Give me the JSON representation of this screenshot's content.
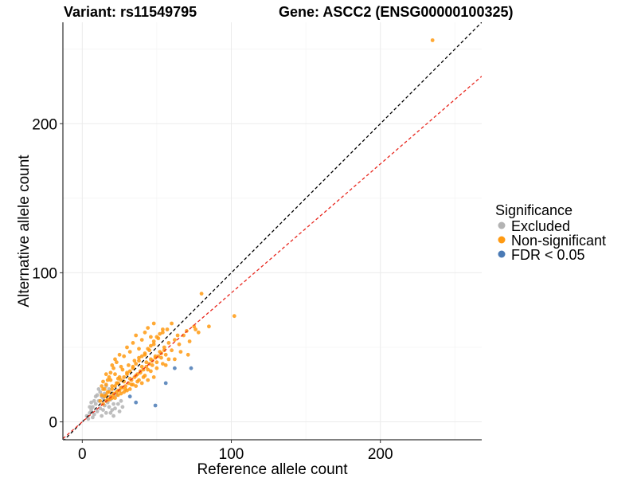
{
  "chart_data": {
    "type": "scatter",
    "title_left": "Variant: rs11549795",
    "title_right": "Gene: ASCC2 (ENSG00000100325)",
    "xlabel": "Reference allele count",
    "ylabel": "Alternative allele count",
    "xlim": [
      -13,
      268
    ],
    "ylim": [
      -12,
      268
    ],
    "x_ticks": [
      0,
      100,
      200
    ],
    "y_ticks": [
      0,
      100,
      200
    ],
    "x_tick_labels": [
      "0",
      "100",
      "200"
    ],
    "y_tick_labels": [
      "0",
      "100",
      "200"
    ],
    "grid": true,
    "legend": {
      "title": "Significance",
      "position": "right",
      "entries": [
        {
          "label": "Excluded",
          "color": "#b3b3b3"
        },
        {
          "label": "Non-significant",
          "color": "#ff9a12"
        },
        {
          "label": "FDR < 0.05",
          "color": "#4a7ab5"
        }
      ]
    },
    "reference_lines": [
      {
        "name": "identity",
        "slope": 1.0,
        "intercept": 0,
        "color": "#000000",
        "style": "dashed"
      },
      {
        "name": "fit",
        "slope": 0.865,
        "intercept": 0,
        "color": "#e8281f",
        "style": "dashed"
      }
    ],
    "series": [
      {
        "name": "Excluded",
        "color": "#b3b3b3",
        "points": [
          [
            3,
            4
          ],
          [
            5,
            6
          ],
          [
            6,
            8
          ],
          [
            7,
            10
          ],
          [
            8,
            5
          ],
          [
            9,
            12
          ],
          [
            10,
            7
          ],
          [
            11,
            14
          ],
          [
            12,
            9
          ],
          [
            13,
            4
          ],
          [
            14,
            16
          ],
          [
            15,
            11
          ],
          [
            16,
            6
          ],
          [
            17,
            13
          ],
          [
            18,
            10
          ],
          [
            19,
            15
          ],
          [
            20,
            8
          ],
          [
            21,
            12
          ],
          [
            22,
            9
          ],
          [
            8,
            14
          ],
          [
            10,
            18
          ],
          [
            12,
            20
          ],
          [
            6,
            13
          ],
          [
            4,
            2
          ],
          [
            7,
            3
          ],
          [
            15,
            19
          ],
          [
            18,
            22
          ],
          [
            13,
            17
          ],
          [
            24,
            12
          ],
          [
            25,
            7
          ],
          [
            26,
            14
          ],
          [
            23,
            18
          ],
          [
            16,
            24
          ],
          [
            11,
            22
          ],
          [
            9,
            17
          ],
          [
            5,
            10
          ],
          [
            14,
            8
          ],
          [
            19,
            6
          ],
          [
            21,
            4
          ],
          [
            27,
            10
          ]
        ]
      },
      {
        "name": "Non-significant",
        "color": "#ff9a12",
        "points": [
          [
            12,
            14
          ],
          [
            13,
            18
          ],
          [
            14,
            22
          ],
          [
            15,
            17
          ],
          [
            16,
            25
          ],
          [
            17,
            20
          ],
          [
            18,
            15
          ],
          [
            19,
            28
          ],
          [
            20,
            24
          ],
          [
            21,
            19
          ],
          [
            22,
            32
          ],
          [
            23,
            26
          ],
          [
            24,
            21
          ],
          [
            25,
            30
          ],
          [
            26,
            23
          ],
          [
            27,
            35
          ],
          [
            28,
            27
          ],
          [
            29,
            22
          ],
          [
            30,
            33
          ],
          [
            31,
            38
          ],
          [
            32,
            29
          ],
          [
            33,
            25
          ],
          [
            34,
            36
          ],
          [
            35,
            41
          ],
          [
            36,
            31
          ],
          [
            37,
            27
          ],
          [
            38,
            43
          ],
          [
            39,
            34
          ],
          [
            40,
            37
          ],
          [
            41,
            30
          ],
          [
            42,
            45
          ],
          [
            43,
            40
          ],
          [
            44,
            35
          ],
          [
            45,
            48
          ],
          [
            46,
            42
          ],
          [
            47,
            38
          ],
          [
            48,
            52
          ],
          [
            49,
            44
          ],
          [
            50,
            40
          ],
          [
            51,
            56
          ],
          [
            52,
            47
          ],
          [
            53,
            43
          ],
          [
            54,
            60
          ],
          [
            55,
            50
          ],
          [
            56,
            45
          ],
          [
            57,
            62
          ],
          [
            58,
            53
          ],
          [
            60,
            48
          ],
          [
            62,
            55
          ],
          [
            64,
            58
          ],
          [
            15,
            22
          ],
          [
            17,
            28
          ],
          [
            19,
            33
          ],
          [
            21,
            36
          ],
          [
            23,
            40
          ],
          [
            25,
            45
          ],
          [
            18,
            30
          ],
          [
            20,
            38
          ],
          [
            22,
            42
          ],
          [
            24,
            29
          ],
          [
            26,
            37
          ],
          [
            28,
            44
          ],
          [
            30,
            50
          ],
          [
            32,
            47
          ],
          [
            34,
            53
          ],
          [
            36,
            58
          ],
          [
            38,
            49
          ],
          [
            40,
            55
          ],
          [
            42,
            60
          ],
          [
            44,
            63
          ],
          [
            46,
            57
          ],
          [
            48,
            66
          ],
          [
            14,
            27
          ],
          [
            16,
            32
          ],
          [
            13,
            24
          ],
          [
            16,
            18
          ],
          [
            18,
            20
          ],
          [
            20,
            22
          ],
          [
            22,
            24
          ],
          [
            24,
            26
          ],
          [
            26,
            28
          ],
          [
            28,
            30
          ],
          [
            30,
            32
          ],
          [
            32,
            34
          ],
          [
            34,
            37
          ],
          [
            36,
            39
          ],
          [
            38,
            41
          ],
          [
            40,
            44
          ],
          [
            42,
            46
          ],
          [
            44,
            49
          ],
          [
            46,
            51
          ],
          [
            48,
            54
          ],
          [
            50,
            57
          ],
          [
            52,
            59
          ],
          [
            54,
            62
          ],
          [
            17,
            15
          ],
          [
            19,
            17
          ],
          [
            21,
            18
          ],
          [
            23,
            20
          ],
          [
            25,
            21
          ],
          [
            27,
            23
          ],
          [
            29,
            24
          ],
          [
            31,
            26
          ],
          [
            33,
            28
          ],
          [
            35,
            30
          ],
          [
            37,
            32
          ],
          [
            39,
            33
          ],
          [
            41,
            35
          ],
          [
            43,
            37
          ],
          [
            45,
            39
          ],
          [
            47,
            41
          ],
          [
            49,
            43
          ],
          [
            51,
            44
          ],
          [
            53,
            46
          ],
          [
            55,
            48
          ],
          [
            14,
            12
          ],
          [
            16,
            14
          ],
          [
            20,
            16
          ],
          [
            24,
            18
          ],
          [
            28,
            20
          ],
          [
            32,
            22
          ],
          [
            36,
            24
          ],
          [
            40,
            26
          ],
          [
            44,
            28
          ],
          [
            48,
            30
          ],
          [
            22,
            16
          ],
          [
            26,
            19
          ],
          [
            30,
            21
          ],
          [
            34,
            25
          ],
          [
            38,
            28
          ],
          [
            42,
            31
          ],
          [
            46,
            34
          ],
          [
            50,
            36
          ],
          [
            54,
            39
          ],
          [
            58,
            42
          ],
          [
            65,
            52
          ],
          [
            68,
            58
          ],
          [
            70,
            61
          ],
          [
            72,
            54
          ],
          [
            75,
            64
          ],
          [
            60,
            66
          ],
          [
            62,
            42
          ],
          [
            66,
            47
          ],
          [
            71,
            45
          ],
          [
            56,
            38
          ],
          [
            80,
            86
          ],
          [
            102,
            71
          ],
          [
            85,
            64
          ],
          [
            78,
            60
          ],
          [
            76,
            62
          ],
          [
            235,
            256
          ]
        ]
      },
      {
        "name": "FDR < 0.05",
        "color": "#4a7ab5",
        "points": [
          [
            32,
            17
          ],
          [
            36,
            13
          ],
          [
            49,
            11
          ],
          [
            56,
            26
          ],
          [
            62,
            36
          ],
          [
            73,
            36
          ]
        ]
      }
    ]
  }
}
